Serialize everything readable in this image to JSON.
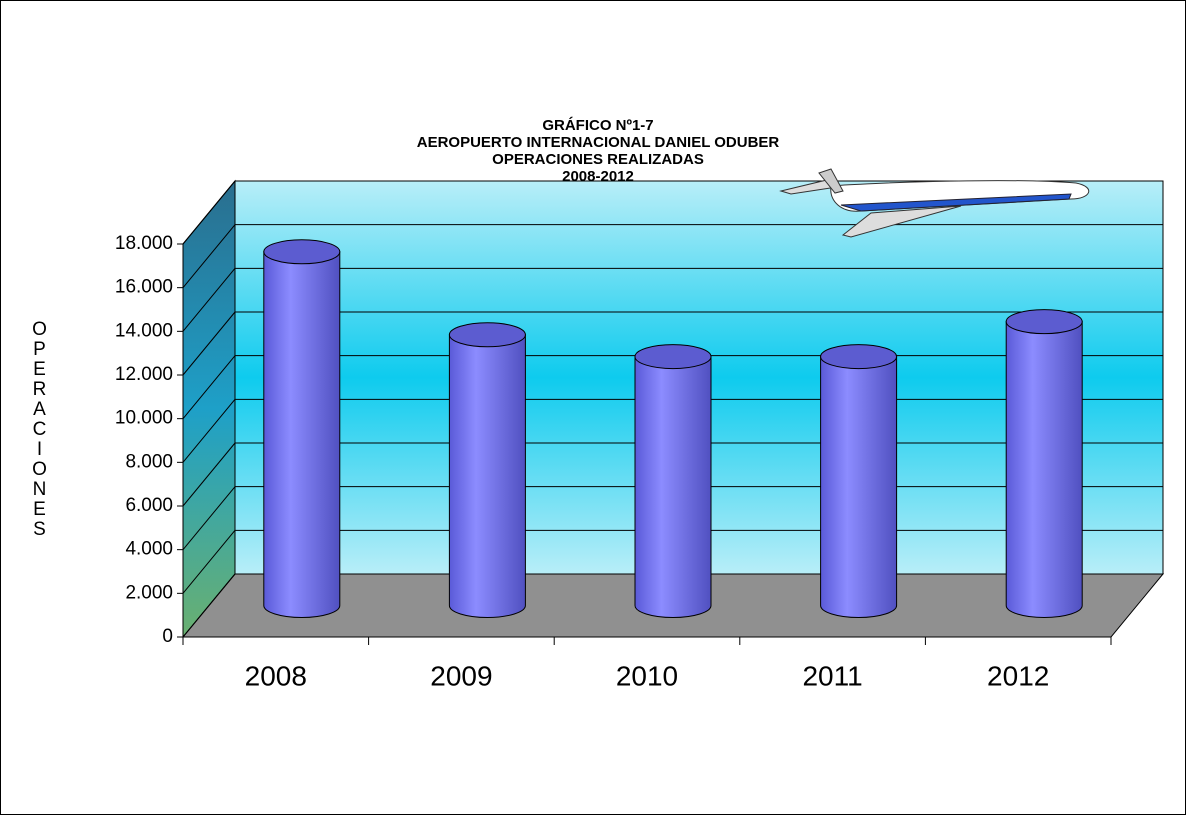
{
  "chart_data": {
    "type": "bar3d",
    "title": [
      "GRÁFICO Nº1-7",
      "AEROPUERTO INTERNACIONAL DANIEL ODUBER",
      "OPERACIONES REALIZADAS",
      "2008-2012"
    ],
    "y_label": "OPERACIONES",
    "categories": [
      "2008",
      "2009",
      "2010",
      "2011",
      "2012"
    ],
    "values": [
      16200,
      12400,
      11400,
      11400,
      13000
    ],
    "color": "#7f7ff0",
    "ylim": [
      0,
      18000
    ],
    "yticks": [
      0,
      {
        "value": 2000,
        "label": "2.000"
      },
      {
        "value": 4000,
        "label": "4.000"
      },
      {
        "value": 6000,
        "label": "6.000"
      },
      {
        "value": 8000,
        "label": "8.000"
      },
      {
        "value": 10000,
        "label": "10.000"
      },
      {
        "value": 12000,
        "label": "12.000"
      },
      {
        "value": 14000,
        "label": "14.000"
      },
      {
        "value": 16000,
        "label": "16.000"
      },
      {
        "value": 18000,
        "label": "18.000"
      }
    ],
    "grid": true
  }
}
